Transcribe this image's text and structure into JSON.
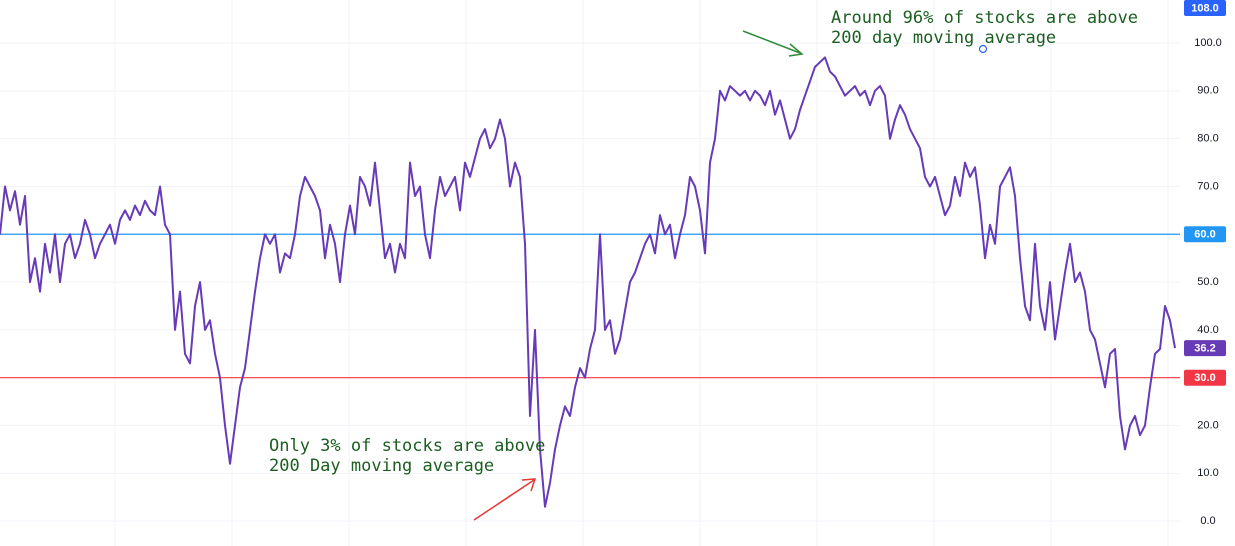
{
  "chart_data": {
    "type": "line",
    "ylim": [
      -5.2,
      109
    ],
    "yticks": [
      {
        "value": 0,
        "label": "0.0"
      },
      {
        "value": 10,
        "label": "10.0"
      },
      {
        "value": 20,
        "label": "20.0"
      },
      {
        "value": 30,
        "label": "30.0"
      },
      {
        "value": 40,
        "label": "40.0"
      },
      {
        "value": 50,
        "label": "50.0"
      },
      {
        "value": 60,
        "label": "60.0"
      },
      {
        "value": 70,
        "label": "70.0"
      },
      {
        "value": 80,
        "label": "80.0"
      },
      {
        "value": 90,
        "label": "90.0"
      },
      {
        "value": 100,
        "label": "100.0"
      }
    ],
    "grid": true,
    "series": [
      {
        "color": "#673ab7",
        "values": [
          60,
          70,
          65,
          69,
          62,
          68,
          50,
          55,
          48,
          58,
          52,
          60,
          50,
          58,
          60,
          55,
          58,
          63,
          60,
          55,
          58,
          60,
          62,
          58,
          63,
          65,
          63,
          66,
          64,
          67,
          65,
          64,
          70,
          62,
          60,
          40,
          48,
          35,
          33,
          45,
          50,
          40,
          42,
          35,
          30,
          20,
          12,
          20,
          28,
          32,
          40,
          48,
          55,
          60,
          58,
          60,
          52,
          56,
          55,
          60,
          68,
          72,
          70,
          68,
          65,
          55,
          62,
          58,
          50,
          60,
          66,
          60,
          72,
          70,
          66,
          75,
          65,
          55,
          58,
          52,
          58,
          55,
          75,
          68,
          70,
          60,
          55,
          65,
          72,
          68,
          70,
          72,
          65,
          75,
          72,
          76,
          80,
          82,
          78,
          80,
          84,
          80,
          70,
          75,
          72,
          58,
          22,
          40,
          15,
          3,
          8,
          15,
          20,
          24,
          22,
          28,
          32,
          30,
          36,
          40,
          60,
          40,
          42,
          35,
          38,
          44,
          50,
          52,
          55,
          58,
          60,
          56,
          64,
          60,
          62,
          55,
          60,
          64,
          72,
          70,
          65,
          56,
          75,
          80,
          90,
          88,
          91,
          90,
          89,
          90,
          88,
          90,
          89,
          87,
          90,
          85,
          88,
          84,
          80,
          82,
          86,
          89,
          92,
          95,
          96,
          97,
          94,
          93,
          91,
          89,
          90,
          91,
          89,
          90,
          87,
          90,
          91,
          89,
          80,
          84,
          87,
          85,
          82,
          80,
          78,
          72,
          70,
          72,
          68,
          64,
          66,
          72,
          68,
          75,
          72,
          74,
          66,
          55,
          62,
          58,
          70,
          72,
          74,
          68,
          55,
          45,
          42,
          58,
          45,
          40,
          50,
          38,
          45,
          52,
          58,
          50,
          52,
          48,
          40,
          38,
          33,
          28,
          35,
          36,
          22,
          15,
          20,
          22,
          18,
          20,
          28,
          35,
          36,
          45,
          42,
          36.2
        ],
        "value_labels": {
          "235": "36.2"
        }
      }
    ],
    "hlines": [
      {
        "value": 60,
        "label": "60.0",
        "color": "#2196f3"
      },
      {
        "value": 30,
        "label": "30.0",
        "color": "#f23645"
      }
    ],
    "top_marker": {
      "value": 108,
      "label": "108.0",
      "color": "#2962ff"
    },
    "annotations": [
      {
        "lines": [
          "Around 96% of stocks are above",
          "200 day moving average"
        ],
        "color": "#1b5e20"
      },
      {
        "lines": [
          "Only 3% of stocks are above",
          "200 Day moving average"
        ],
        "color": "#1b5e20"
      }
    ]
  }
}
